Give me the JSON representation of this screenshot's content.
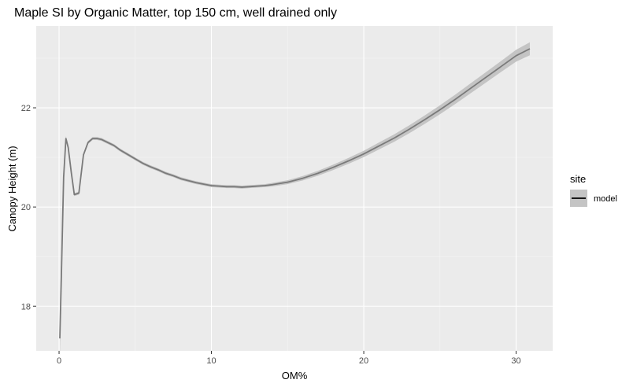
{
  "chart_data": {
    "type": "line",
    "title": "Maple SI by Organic Matter, top 150 cm, well drained only",
    "xlabel": "OM%",
    "ylabel": "Canopy Height (m)",
    "xlim": [
      -1.5,
      32.4
    ],
    "ylim": [
      17.1,
      23.65
    ],
    "x_ticks": [
      0,
      10,
      20,
      30
    ],
    "x_tick_labels": [
      "0",
      "10",
      "20",
      "30"
    ],
    "y_ticks": [
      18,
      20,
      22
    ],
    "y_tick_labels": [
      "18",
      "20",
      "22"
    ],
    "grid": true,
    "legend": {
      "title": "site",
      "position": "right",
      "entries": [
        "model"
      ]
    },
    "colors": {
      "panel": "#ebebeb",
      "grid": "#ffffff",
      "line": "#7a7a7a",
      "ribbon": "#c4c4c4"
    },
    "series": [
      {
        "name": "model",
        "x": [
          0.05,
          0.15,
          0.3,
          0.45,
          0.6,
          0.8,
          1.0,
          1.3,
          1.6,
          1.9,
          2.2,
          2.5,
          2.8,
          3.2,
          3.6,
          4.0,
          4.5,
          5.0,
          5.5,
          6.0,
          6.5,
          7.0,
          7.5,
          8.0,
          8.5,
          9.0,
          9.5,
          10.0,
          10.5,
          11.0,
          11.5,
          12.0,
          12.5,
          13.0,
          13.5,
          14.0,
          15.0,
          16.0,
          17.0,
          18.0,
          19.0,
          20.0,
          21.0,
          22.0,
          23.0,
          24.0,
          25.0,
          26.0,
          27.0,
          28.0,
          29.0,
          30.0,
          30.9
        ],
        "y": [
          17.35,
          18.6,
          20.6,
          21.38,
          21.2,
          20.7,
          20.25,
          20.28,
          21.05,
          21.3,
          21.38,
          21.38,
          21.36,
          21.3,
          21.24,
          21.15,
          21.06,
          20.97,
          20.88,
          20.81,
          20.75,
          20.68,
          20.63,
          20.57,
          20.53,
          20.49,
          20.46,
          20.43,
          20.42,
          20.41,
          20.41,
          20.4,
          20.41,
          20.42,
          20.43,
          20.45,
          20.5,
          20.58,
          20.68,
          20.8,
          20.93,
          21.07,
          21.23,
          21.39,
          21.57,
          21.76,
          21.96,
          22.17,
          22.39,
          22.61,
          22.83,
          23.05,
          23.19
        ],
        "ribbon_halfwidth": [
          0.38,
          0.22,
          0.08,
          0.05,
          0.04,
          0.03,
          0.03,
          0.03,
          0.03,
          0.03,
          0.03,
          0.03,
          0.03,
          0.03,
          0.03,
          0.03,
          0.03,
          0.03,
          0.03,
          0.03,
          0.03,
          0.03,
          0.03,
          0.03,
          0.03,
          0.03,
          0.03,
          0.03,
          0.03,
          0.03,
          0.03,
          0.03,
          0.03,
          0.03,
          0.03,
          0.035,
          0.04,
          0.045,
          0.05,
          0.055,
          0.06,
          0.065,
          0.07,
          0.075,
          0.08,
          0.085,
          0.09,
          0.095,
          0.1,
          0.105,
          0.11,
          0.12,
          0.13
        ]
      }
    ]
  }
}
